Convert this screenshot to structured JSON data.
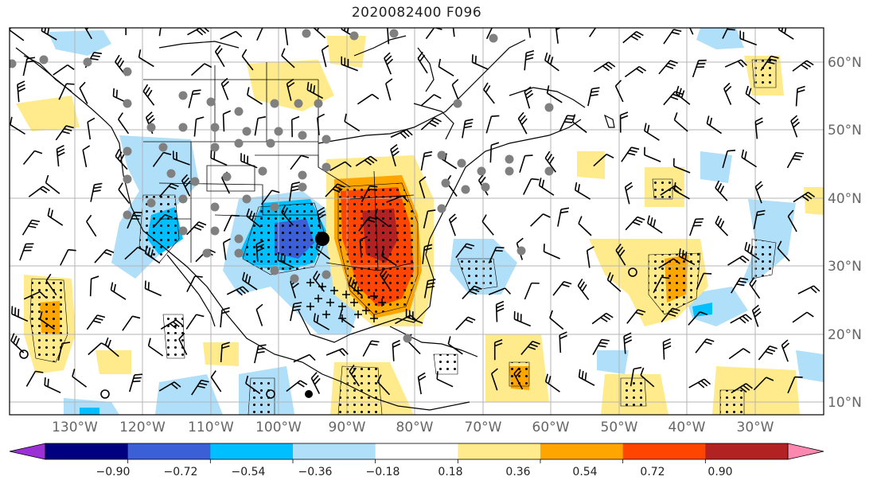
{
  "title": "2020082400 F096",
  "colors": {
    "frame": "#000000",
    "gridline": "#b5b5b5",
    "coastline": "#000000",
    "label": "#666666",
    "dot_marker": "#808080"
  },
  "colorbar": {
    "extend": "both",
    "bins": [
      {
        "color": "#9b30d9"
      },
      {
        "color": "#000080"
      },
      {
        "color": "#3a5fd6"
      },
      {
        "color": "#00bfff"
      },
      {
        "color": "#b0dff9"
      },
      {
        "color": "#ffffff"
      },
      {
        "color": "#ffeb8c"
      },
      {
        "color": "#ffa500"
      },
      {
        "color": "#ff4500"
      },
      {
        "color": "#b22222"
      },
      {
        "color": "#ff88b0"
      }
    ],
    "tick_labels": [
      "−0.90",
      "−0.72",
      "−0.54",
      "−0.36",
      "−0.18",
      "0.18",
      "0.36",
      "0.54",
      "0.72",
      "0.90"
    ]
  },
  "map": {
    "lon_labels": [
      "130°W",
      "120°W",
      "110°W",
      "100°W",
      "90°W",
      "80°W",
      "70°W",
      "60°W",
      "50°W",
      "40°W",
      "30°W"
    ],
    "lat_labels": [
      "60°N",
      "50°N",
      "40°N",
      "30°N",
      "20°N",
      "10°N"
    ]
  }
}
